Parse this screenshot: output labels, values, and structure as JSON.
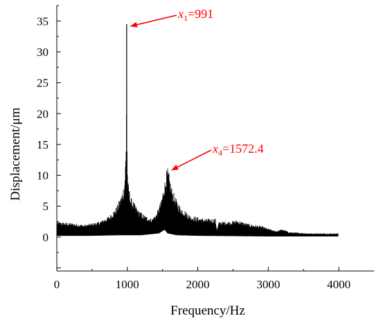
{
  "chart_data": {
    "type": "line",
    "title": "",
    "xlabel": "Frequency/Hz",
    "ylabel": "Displacement/μm",
    "xlim": [
      0,
      4500
    ],
    "ylim": [
      -5.5,
      37.5
    ],
    "xticks": [
      "0",
      "1000",
      "2000",
      "3000",
      "4000"
    ],
    "yticks": [
      "0",
      "5",
      "10",
      "15",
      "20",
      "25",
      "30",
      "35"
    ],
    "grid": false,
    "series": [
      {
        "color": "#000000",
        "envelope_upper": [
          [
            0,
            2.5
          ],
          [
            200,
            2.3
          ],
          [
            400,
            2.0
          ],
          [
            600,
            2.5
          ],
          [
            750,
            3.5
          ],
          [
            850,
            5.0
          ],
          [
            920,
            7.0
          ],
          [
            960,
            9.0
          ],
          [
            975,
            13.0
          ],
          [
            982,
            15.0
          ],
          [
            986,
            20.0
          ],
          [
            991,
            34.5
          ],
          [
            995,
            20.0
          ],
          [
            1000,
            12.0
          ],
          [
            1010,
            9.0
          ],
          [
            1050,
            6.5
          ],
          [
            1150,
            4.5
          ],
          [
            1250,
            3.5
          ],
          [
            1350,
            3.0
          ],
          [
            1420,
            4.0
          ],
          [
            1480,
            6.0
          ],
          [
            1530,
            9.0
          ],
          [
            1560,
            11.0
          ],
          [
            1572.4,
            11.2
          ],
          [
            1590,
            10.5
          ],
          [
            1620,
            8.5
          ],
          [
            1680,
            6.5
          ],
          [
            1750,
            5.0
          ],
          [
            1900,
            3.5
          ],
          [
            2100,
            3.0
          ],
          [
            2250,
            3.0
          ],
          [
            2270,
            1.2
          ],
          [
            2300,
            2.5
          ],
          [
            2500,
            2.6
          ],
          [
            2550,
            2.8
          ],
          [
            2700,
            2.2
          ],
          [
            2900,
            1.8
          ],
          [
            3100,
            1.0
          ],
          [
            3200,
            1.3
          ],
          [
            3300,
            0.8
          ],
          [
            3600,
            0.6
          ],
          [
            3990,
            0.6
          ]
        ],
        "envelope_lower": [
          [
            0,
            0.2
          ],
          [
            500,
            0.2
          ],
          [
            900,
            0.3
          ],
          [
            1000,
            0.3
          ],
          [
            1200,
            0.3
          ],
          [
            1450,
            0.6
          ],
          [
            1530,
            1.2
          ],
          [
            1570,
            0.6
          ],
          [
            1700,
            0.3
          ],
          [
            2000,
            0.2
          ],
          [
            3000,
            0.1
          ],
          [
            3990,
            0.1
          ]
        ]
      }
    ],
    "annotations": [
      {
        "var": "x",
        "sub": "1",
        "value": "=991",
        "x": 991,
        "y": 34.5,
        "color": "#ff0000"
      },
      {
        "var": "x",
        "sub": "4",
        "value": "=1572.4",
        "x": 1572.4,
        "y": 11.2,
        "color": "#ff0000"
      }
    ]
  }
}
